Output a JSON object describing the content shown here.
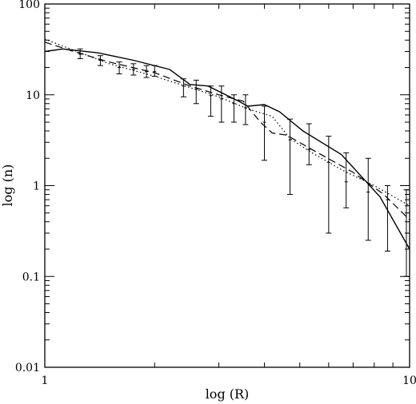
{
  "chart_data": {
    "type": "line",
    "title": "",
    "xlabel": "log (R)",
    "ylabel": "log (n)",
    "xscale": "log",
    "yscale": "log",
    "xlim": [
      1,
      10
    ],
    "ylim": [
      0.01,
      100
    ],
    "x_ticks": [
      {
        "value": 1,
        "label": "1"
      },
      {
        "value": 10,
        "label": "10"
      }
    ],
    "y_ticks": [
      {
        "value": 0.01,
        "label": "0.01"
      },
      {
        "value": 0.1,
        "label": "0.1"
      },
      {
        "value": 1,
        "label": "1"
      },
      {
        "value": 10,
        "label": "10"
      },
      {
        "value": 100,
        "label": "100"
      }
    ],
    "grid": false,
    "legend": "none",
    "series": [
      {
        "style": "solid",
        "x": [
          1.0,
          1.12,
          1.4,
          1.75,
          2.2,
          2.5,
          2.8,
          3.4,
          3.6,
          4.0,
          4.4,
          5.1,
          6.5,
          8.3,
          10.0
        ],
        "y": [
          30.0,
          32.0,
          29.0,
          24.0,
          19.0,
          13.0,
          12.5,
          8.5,
          7.5,
          7.8,
          6.5,
          4.0,
          2.2,
          0.75,
          0.2
        ]
      },
      {
        "style": "dashed",
        "x": [
          1.0,
          1.2,
          1.5,
          2.0,
          2.5,
          3.0,
          3.5,
          3.9,
          4.2,
          4.6,
          5.5,
          7.0,
          8.5,
          10.0
        ],
        "y": [
          38.0,
          30.0,
          23.0,
          17.5,
          12.5,
          10.0,
          8.5,
          5.0,
          3.8,
          3.6,
          2.4,
          1.4,
          0.8,
          0.42
        ]
      },
      {
        "style": "dotted",
        "x": [
          1.0,
          1.2,
          1.5,
          2.0,
          2.5,
          3.0,
          3.6,
          4.2,
          4.7,
          5.4,
          6.5,
          8.0,
          10.0
        ],
        "y": [
          41.0,
          31.0,
          22.0,
          16.0,
          12.0,
          9.5,
          7.0,
          5.8,
          3.3,
          2.3,
          1.5,
          1.0,
          0.6
        ]
      }
    ],
    "error_bars": {
      "x": [
        1.25,
        1.42,
        1.6,
        1.75,
        1.9,
        2.0,
        2.4,
        2.6,
        2.85,
        3.05,
        3.3,
        3.55,
        4.0,
        4.7,
        5.3,
        6.0,
        6.7,
        7.7,
        8.7,
        9.8
      ],
      "center": [
        28.0,
        24.0,
        20.0,
        19.0,
        18.0,
        18.0,
        12.5,
        11.5,
        9.8,
        9.0,
        8.0,
        7.2,
        5.0,
        3.2,
        2.5,
        1.8,
        1.1,
        0.85,
        0.7,
        0.3
      ],
      "low": [
        25.0,
        21.0,
        17.0,
        16.5,
        15.5,
        16.0,
        9.5,
        8.0,
        5.8,
        5.0,
        5.0,
        4.7,
        1.9,
        0.8,
        1.7,
        0.3,
        0.57,
        0.25,
        0.19,
        0.1
      ],
      "high": [
        32.0,
        27.0,
        23.0,
        22.0,
        21.0,
        21.0,
        15.0,
        14.5,
        12.5,
        12.5,
        10.0,
        10.0,
        7.5,
        5.4,
        4.8,
        3.5,
        2.3,
        2.0,
        1.0,
        0.9
      ]
    }
  }
}
